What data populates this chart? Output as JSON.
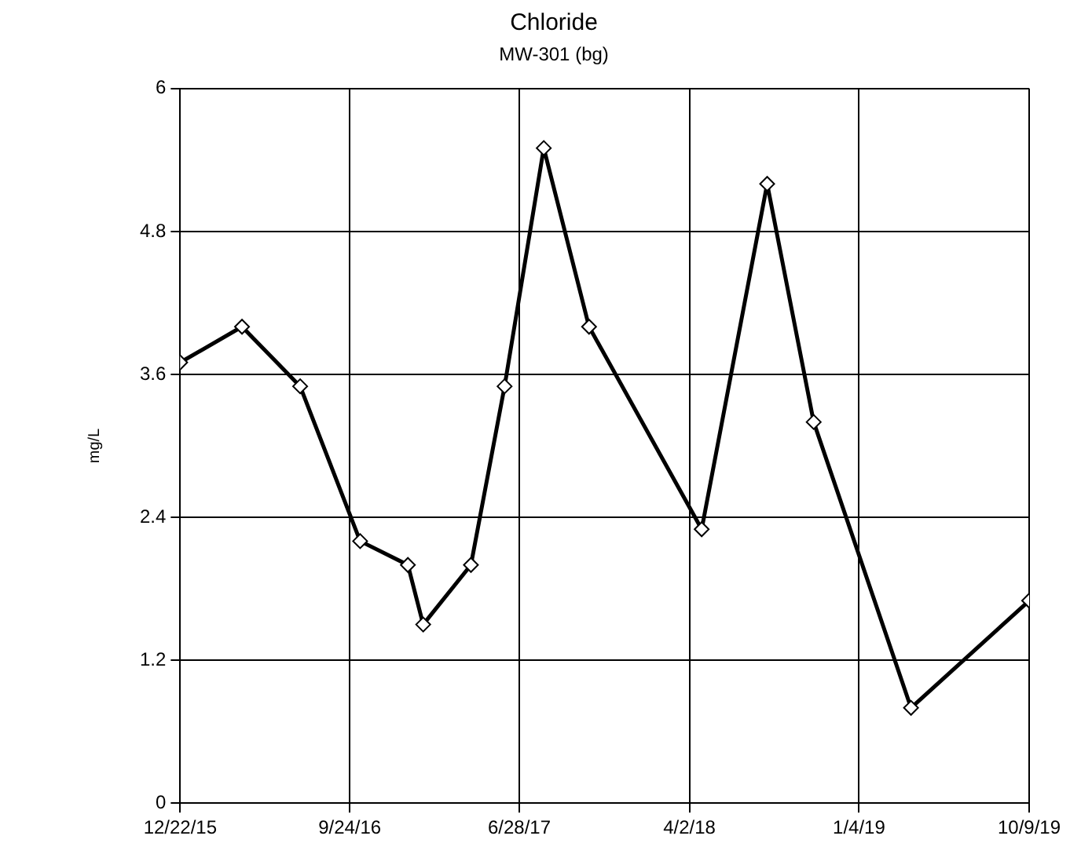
{
  "chart_data": {
    "type": "line",
    "title": "Chloride",
    "subtitle": "MW-301 (bg)",
    "ylabel": "mg/L",
    "x": [
      "2015-12-22",
      "2016-04-01",
      "2016-07-05",
      "2016-10-11",
      "2016-12-28",
      "2017-01-22",
      "2017-04-10",
      "2017-06-04",
      "2017-08-07",
      "2017-10-20",
      "2018-04-22",
      "2018-08-07",
      "2018-10-22",
      "2019-03-30",
      "2019-10-09"
    ],
    "series": [
      {
        "color": "#000000",
        "values": [
          3.7,
          4.0,
          3.5,
          2.2,
          2.0,
          1.5,
          2.0,
          3.5,
          5.5,
          4.0,
          2.3,
          5.2,
          3.2,
          0.8,
          1.7
        ]
      }
    ],
    "xlim": [
      "2015-12-22",
      "2019-10-09"
    ],
    "xticks": [
      {
        "value": "2015-12-22",
        "label": "12/22/15"
      },
      {
        "value": "2016-09-24",
        "label": "9/24/16"
      },
      {
        "value": "2017-06-28",
        "label": "6/28/17"
      },
      {
        "value": "2018-04-02",
        "label": "4/2/18"
      },
      {
        "value": "2019-01-04",
        "label": "1/4/19"
      },
      {
        "value": "2019-10-09",
        "label": "10/9/19"
      }
    ],
    "ylim": [
      0,
      6
    ],
    "yticks": [
      0,
      1.2,
      2.4,
      3.6,
      4.8,
      6
    ],
    "grid": true,
    "marker": "diamond",
    "line_style": "solid",
    "legend": false
  }
}
